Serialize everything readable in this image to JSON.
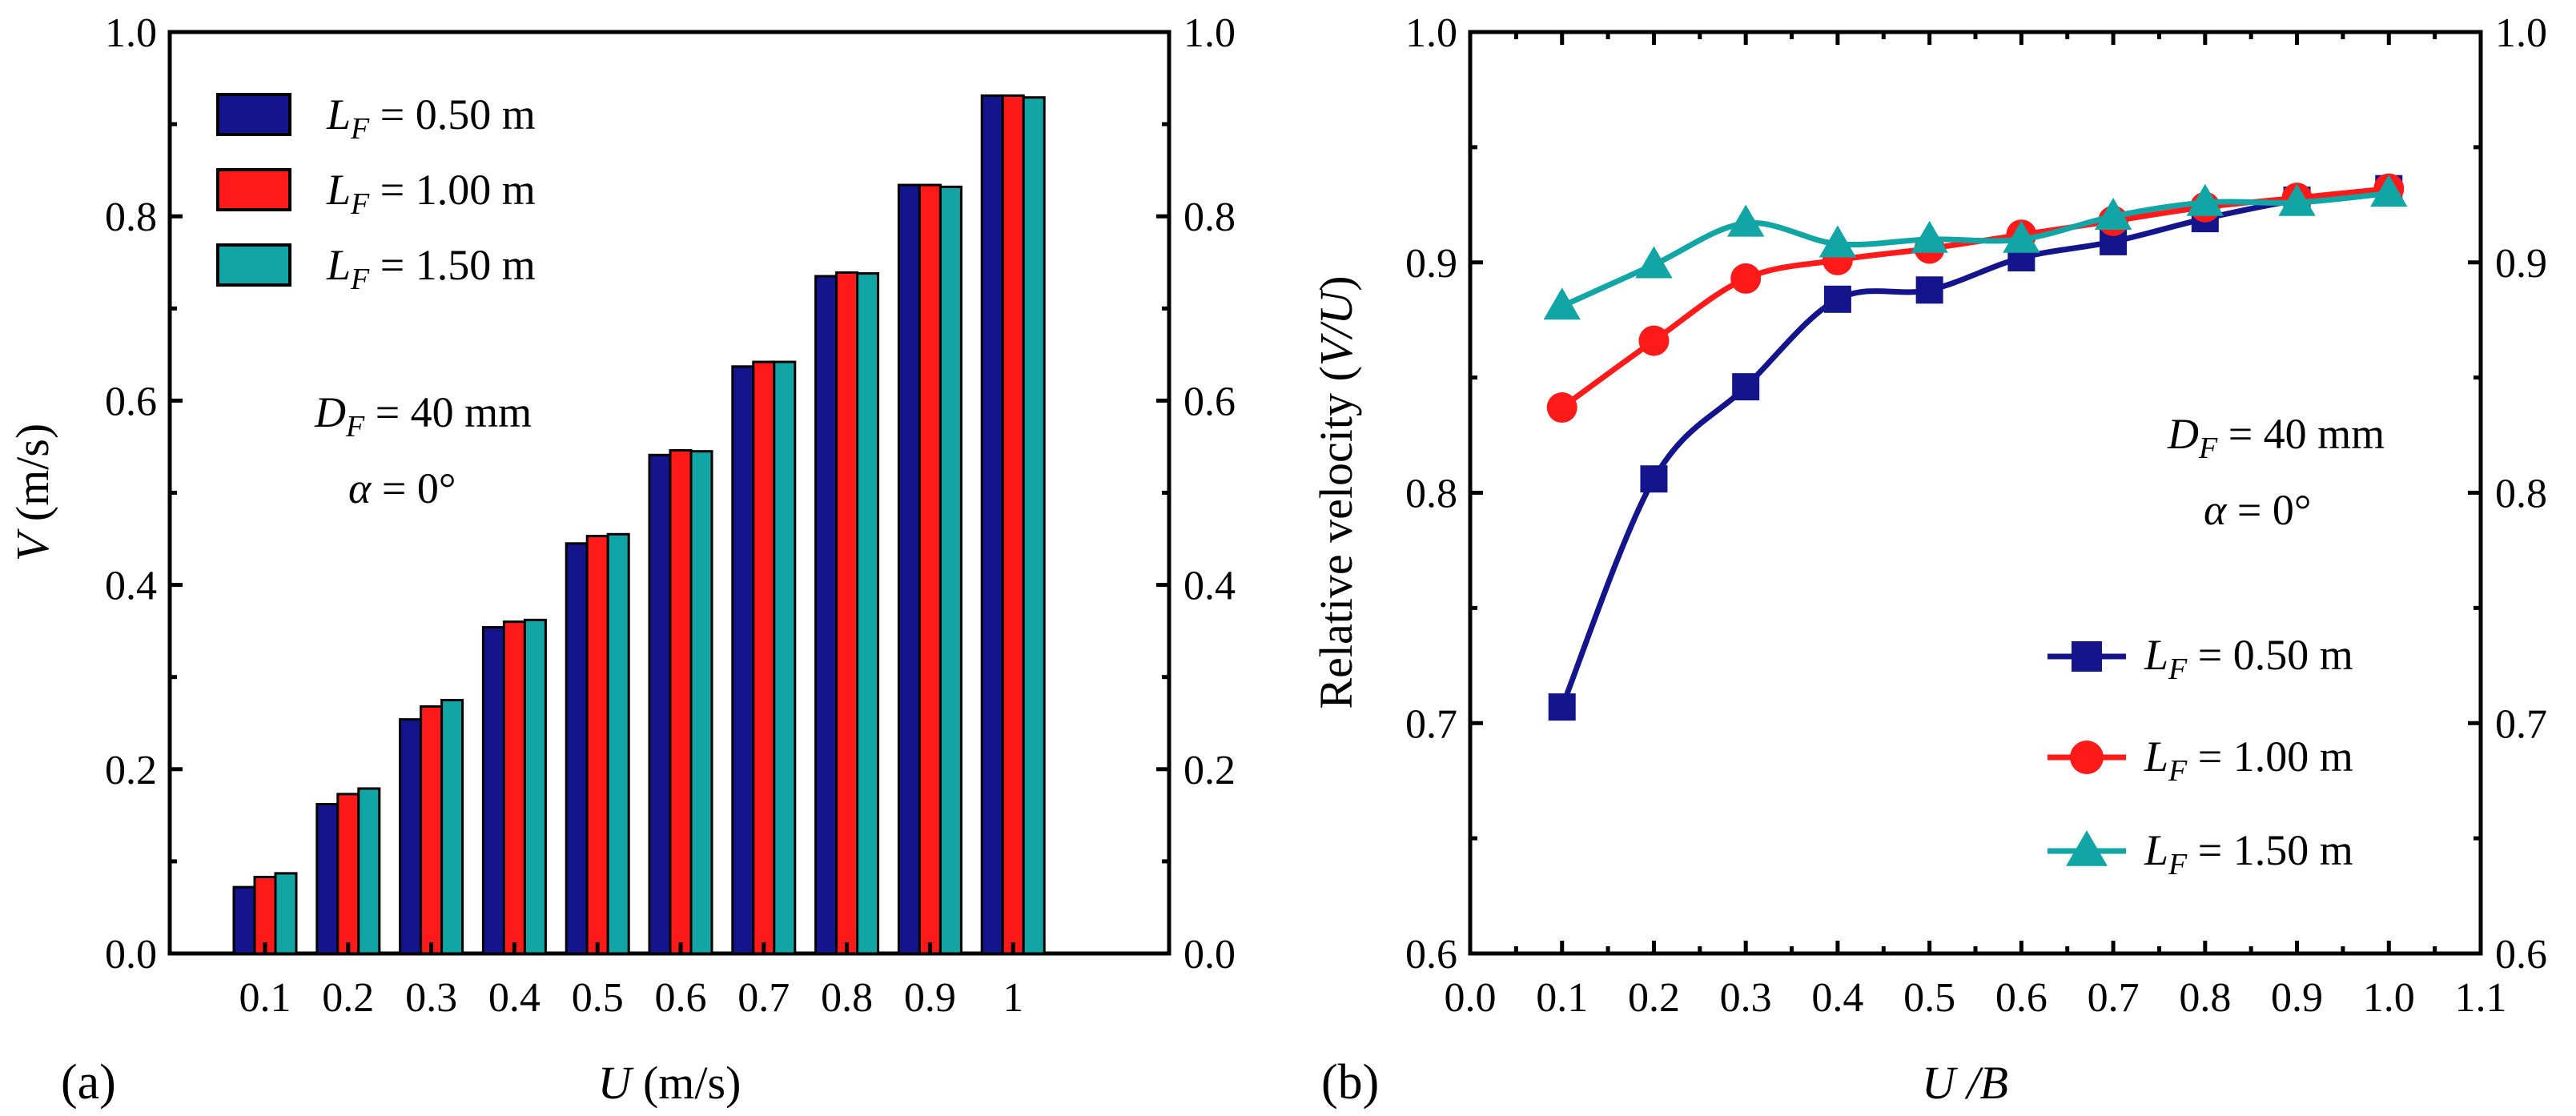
{
  "chart_data": [
    {
      "type": "bar",
      "panel_label": "(a)",
      "categories": [
        "0.1",
        "0.2",
        "0.3",
        "0.4",
        "0.5",
        "0.6",
        "0.7",
        "0.8",
        "0.9",
        "1"
      ],
      "series": [
        {
          "name": "L_F = 0.50 m",
          "color": "#14148c",
          "values": [
            0.072,
            0.162,
            0.254,
            0.354,
            0.445,
            0.541,
            0.637,
            0.735,
            0.834,
            0.931
          ]
        },
        {
          "name": "L_F = 1.00 m",
          "color": "#ff1a1a",
          "values": [
            0.083,
            0.173,
            0.268,
            0.36,
            0.453,
            0.546,
            0.642,
            0.739,
            0.834,
            0.931
          ]
        },
        {
          "name": "L_F = 1.50 m",
          "color": "#12a5a5",
          "values": [
            0.087,
            0.179,
            0.275,
            0.362,
            0.455,
            0.545,
            0.642,
            0.738,
            0.832,
            0.929
          ]
        }
      ],
      "xlabel": {
        "sym": "U",
        "unit": " (m/s)"
      },
      "ylabel": {
        "sym": "V",
        "unit": " (m/s)"
      },
      "ylim": [
        0,
        1.0
      ],
      "yticks": [
        "0.0",
        "0.2",
        "0.4",
        "0.6",
        "0.8",
        "1.0"
      ],
      "right_yticks": [
        "0.0",
        "0.2",
        "0.4",
        "0.6",
        "0.8",
        "1.0"
      ],
      "legend": {
        "placement": "top-left",
        "entries": [
          {
            "sym": "L",
            "sub": "F",
            "rest": " = 0.50 m"
          },
          {
            "sym": "L",
            "sub": "F",
            "rest": " = 1.00 m"
          },
          {
            "sym": "L",
            "sub": "F",
            "rest": " = 1.50 m"
          }
        ]
      },
      "annotations": [
        {
          "sym": "D",
          "sub": "F",
          "rest": " = 40 mm"
        },
        {
          "sym": "α",
          "sub": "",
          "rest": " = 0°"
        }
      ],
      "grid": false
    },
    {
      "type": "line",
      "panel_label": "(b)",
      "x": [
        0.1,
        0.2,
        0.3,
        0.4,
        0.5,
        0.6,
        0.7,
        0.8,
        0.9,
        1.0
      ],
      "series": [
        {
          "name": "L_F = 0.50 m",
          "color": "#14148c",
          "marker": "square",
          "values": [
            0.707,
            0.806,
            0.846,
            0.884,
            0.888,
            0.902,
            0.909,
            0.919,
            0.927,
            0.932
          ]
        },
        {
          "name": "L_F = 1.00 m",
          "color": "#ff1a1a",
          "marker": "circle",
          "values": [
            0.837,
            0.866,
            0.893,
            0.901,
            0.906,
            0.912,
            0.918,
            0.924,
            0.928,
            0.932
          ]
        },
        {
          "name": "L_F = 1.50 m",
          "color": "#12a5a5",
          "marker": "triangle",
          "values": [
            0.881,
            0.899,
            0.917,
            0.908,
            0.91,
            0.91,
            0.92,
            0.926,
            0.926,
            0.93
          ]
        }
      ],
      "xlabel": {
        "sym": "U /B",
        "unit": ""
      },
      "ylabel": {
        "pre": "Relative velocity (",
        "sym": "V/U",
        "post": ")"
      },
      "xlim": [
        0.0,
        1.1
      ],
      "ylim": [
        0.6,
        1.0
      ],
      "xticks": [
        "0.0",
        "0.1",
        "0.2",
        "0.3",
        "0.4",
        "0.5",
        "0.6",
        "0.7",
        "0.8",
        "0.9",
        "1.0",
        "1.1"
      ],
      "yticks": [
        "0.6",
        "0.7",
        "0.8",
        "0.9",
        "1.0"
      ],
      "right_yticks": [
        "0.6",
        "0.7",
        "0.8",
        "0.9",
        "1.0"
      ],
      "legend": {
        "placement": "bottom-right",
        "entries": [
          {
            "sym": "L",
            "sub": "F",
            "rest": " = 0.50 m"
          },
          {
            "sym": "L",
            "sub": "F",
            "rest": " = 1.00 m"
          },
          {
            "sym": "L",
            "sub": "F",
            "rest": " = 1.50 m"
          }
        ]
      },
      "annotations": [
        {
          "sym": "D",
          "sub": "F",
          "rest": " = 40 mm"
        },
        {
          "sym": "α",
          "sub": "",
          "rest": " = 0°"
        }
      ],
      "grid": false
    }
  ]
}
